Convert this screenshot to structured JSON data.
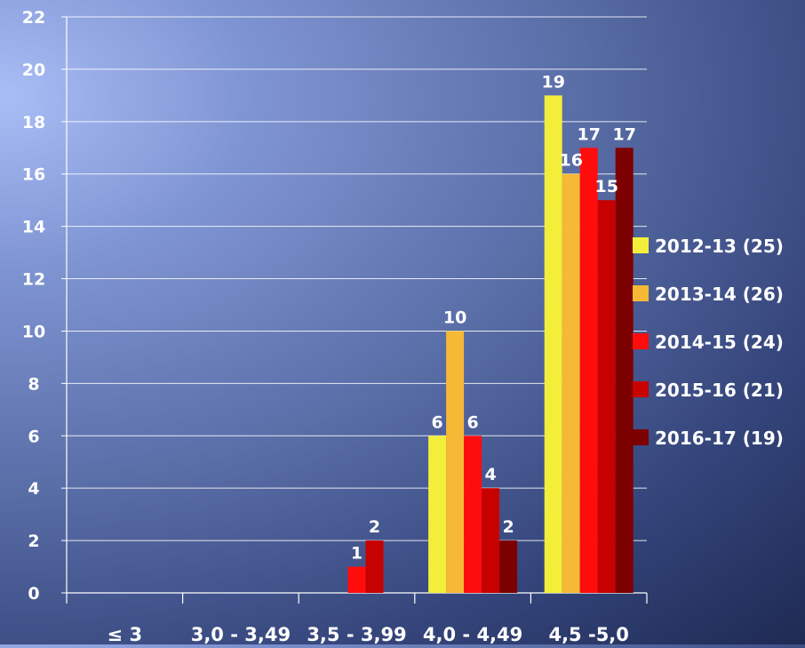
{
  "chart_data": {
    "type": "bar",
    "categories": [
      "≤ 3",
      "3,0 - 3,49",
      "3,5 - 3,99",
      "4,0 - 4,49",
      "4,5 -5,0"
    ],
    "series": [
      {
        "name": "2012-13 (25)",
        "color": "#f3ee3a",
        "values": [
          0,
          0,
          0,
          6,
          19
        ]
      },
      {
        "name": "2013-14 (26)",
        "color": "#f5b935",
        "values": [
          0,
          0,
          0,
          10,
          16
        ]
      },
      {
        "name": "2014-15 (24)",
        "color": "#ff0d0d",
        "values": [
          0,
          0,
          1,
          6,
          17
        ]
      },
      {
        "name": "2015-16 (21)",
        "color": "#c70000",
        "values": [
          0,
          0,
          2,
          4,
          15
        ]
      },
      {
        "name": "2016-17 (19)",
        "color": "#7d0000",
        "values": [
          0,
          0,
          0,
          2,
          17
        ]
      }
    ],
    "ylim": [
      0,
      22
    ],
    "yticks": [
      0,
      2,
      4,
      6,
      8,
      10,
      12,
      14,
      16,
      18,
      20,
      22
    ],
    "grid": true,
    "legend_position": "right"
  }
}
